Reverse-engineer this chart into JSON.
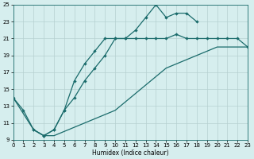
{
  "xlabel": "Humidex (Indice chaleur)",
  "xlim": [
    0,
    23
  ],
  "ylim": [
    9,
    25
  ],
  "xticks": [
    0,
    1,
    2,
    3,
    4,
    5,
    6,
    7,
    8,
    9,
    10,
    11,
    12,
    13,
    14,
    15,
    16,
    17,
    18,
    19,
    20,
    21,
    22,
    23
  ],
  "yticks": [
    9,
    11,
    13,
    15,
    17,
    19,
    21,
    23,
    25
  ],
  "bg_color": "#d6eeee",
  "grid_color": "#b5d0d0",
  "line_color": "#1a6b6b",
  "line1_x": [
    0,
    1,
    2,
    3,
    4,
    5,
    6,
    7,
    8,
    9,
    10,
    11,
    12,
    13,
    14,
    15,
    16,
    17,
    18
  ],
  "line1_y": [
    14,
    12.5,
    10.2,
    9.5,
    10.2,
    12.5,
    16,
    18,
    19.5,
    21,
    21,
    21,
    22,
    23.5,
    25,
    23.5,
    24,
    24,
    23
  ],
  "line2_x": [
    2,
    3,
    4,
    5,
    6,
    7,
    8,
    9,
    10,
    11,
    12,
    13,
    14,
    15,
    16,
    17,
    18,
    19,
    20,
    21,
    22,
    23
  ],
  "line2_y": [
    10.2,
    9.5,
    10.2,
    12.5,
    14,
    16,
    17.5,
    19,
    21,
    21,
    21,
    21,
    21,
    21,
    21.5,
    21,
    21,
    21,
    21,
    21,
    21,
    20
  ],
  "line3_x": [
    0,
    2,
    3,
    4,
    5,
    6,
    7,
    8,
    9,
    10,
    11,
    12,
    13,
    14,
    15,
    16,
    17,
    18,
    19,
    20,
    21,
    22,
    23
  ],
  "line3_y": [
    14,
    10.2,
    9.5,
    9.5,
    10,
    10.5,
    11,
    11.5,
    12,
    12.5,
    13.5,
    14.5,
    15.5,
    16.5,
    17.5,
    18,
    18.5,
    19,
    19.5,
    20,
    20,
    20,
    20
  ]
}
